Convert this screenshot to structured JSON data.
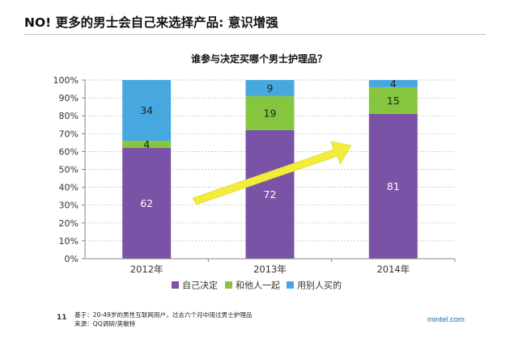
{
  "page": {
    "title": "NO! 更多的男士会自己来选择产品: 意识增强",
    "page_number": "11",
    "footnote_line1": "基于：20-49岁的男性互联网用户，过去六个月中用过男士护理品",
    "footnote_line2": "来源：QQ调研/英敏特",
    "brand": "mintel.com"
  },
  "colors": {
    "self": "#7b53a6",
    "together": "#86c53e",
    "others": "#47a7df",
    "arrow": "#f2ec3a",
    "axis": "#888888",
    "grid": "#bbbbbb"
  },
  "chart_data": {
    "type": "bar",
    "stacked": true,
    "title": "谁参与决定买哪个男士护理品？",
    "categories": [
      "2012年",
      "2013年",
      "2014年"
    ],
    "series": [
      {
        "name": "自己决定",
        "values": [
          62,
          72,
          81
        ],
        "labels": [
          "62",
          "72",
          "81"
        ],
        "color_key": "self"
      },
      {
        "name": "和他人一起",
        "values": [
          4,
          19,
          15
        ],
        "labels": [
          "4",
          "19",
          "15"
        ],
        "color_key": "together"
      },
      {
        "name": "用别人买的",
        "values": [
          34,
          9,
          4
        ],
        "labels": [
          "34",
          "9",
          "4"
        ],
        "color_key": "others"
      }
    ],
    "yticks": [
      "0%",
      "10%",
      "20%",
      "30%",
      "40%",
      "50%",
      "60%",
      "70%",
      "80%",
      "90%",
      "100%"
    ],
    "ylim": [
      0,
      100
    ],
    "legend_position": "bottom",
    "annotation": "upward trend arrow"
  }
}
